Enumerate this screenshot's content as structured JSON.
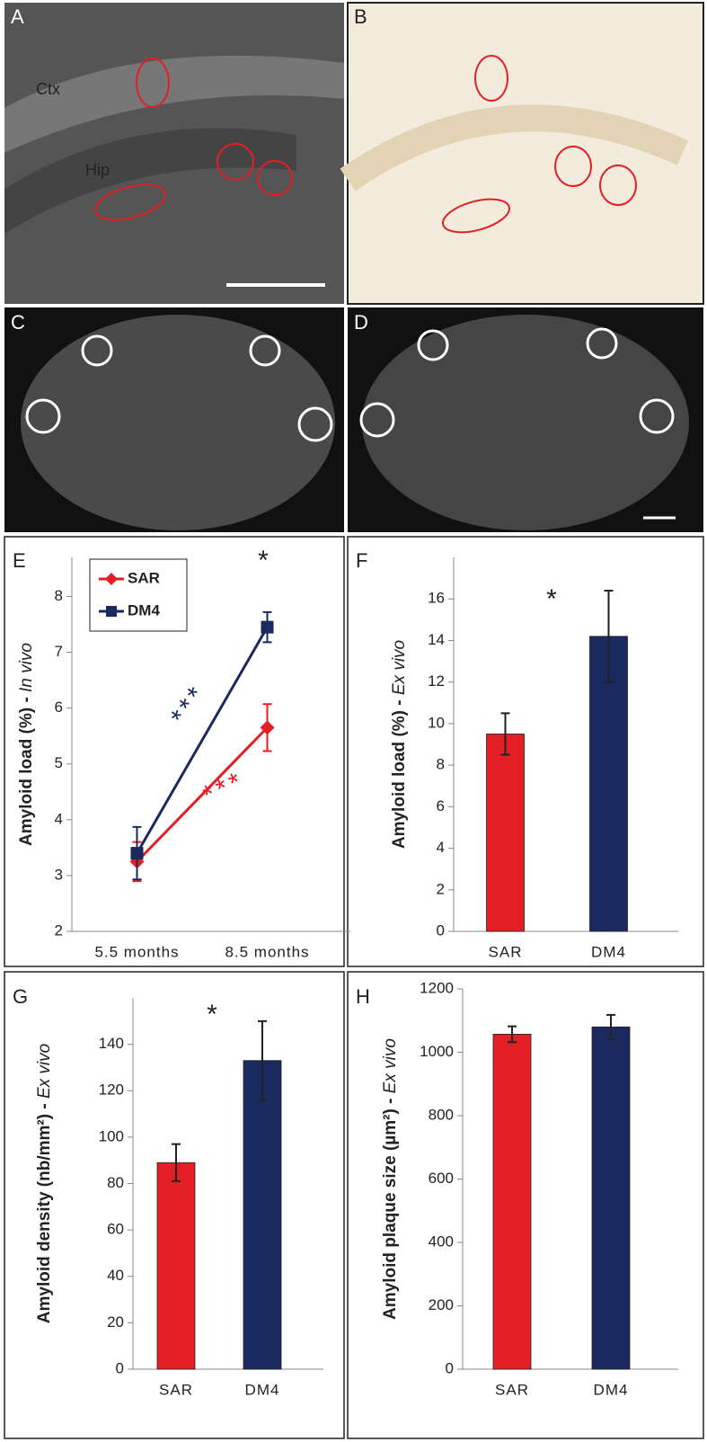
{
  "panels": [
    {
      "label": "A",
      "texts": [
        "Ctx",
        "Hip"
      ]
    },
    {
      "label": "B",
      "texts": []
    },
    {
      "label": "C",
      "texts": []
    },
    {
      "label": "D",
      "texts": []
    }
  ],
  "chart_data": [
    {
      "type": "line",
      "panel": "E",
      "ylabel": [
        "Amyloid load (%) - ",
        "In vivo"
      ],
      "categories": [
        "5.5 months",
        "8.5 months"
      ],
      "series": [
        {
          "name": "SAR",
          "color": "#e31e24",
          "marker": "diamond",
          "values": [
            3.25,
            5.65
          ],
          "errors": [
            0.35,
            0.42
          ]
        },
        {
          "name": "DM4",
          "color": "#1b2a5e",
          "marker": "square",
          "values": [
            3.4,
            7.45
          ],
          "errors": [
            0.47,
            0.27
          ]
        }
      ],
      "ylim": [
        2,
        8.7
      ],
      "yticks": [
        2,
        3,
        4,
        5,
        6,
        7,
        8
      ],
      "legend": "upper left",
      "annotations": [
        {
          "text": "*",
          "color": "#222"
        },
        {
          "text": "***",
          "color": "#1b2a5e"
        },
        {
          "text": "***",
          "color": "#e31e24"
        }
      ]
    },
    {
      "type": "bar",
      "panel": "F",
      "ylabel": [
        "Amyloid load (%) - ",
        "Ex vivo"
      ],
      "categories": [
        "SAR",
        "DM4"
      ],
      "values": [
        9.5,
        14.2
      ],
      "errors": [
        1.0,
        2.2
      ],
      "colors": [
        "#e31e24",
        "#1b2a5e"
      ],
      "ylim": [
        0,
        18
      ],
      "yticks": [
        0,
        2,
        4,
        6,
        8,
        10,
        12,
        14,
        16
      ],
      "annotations": [
        {
          "text": "*",
          "color": "#222"
        }
      ]
    },
    {
      "type": "bar",
      "panel": "G",
      "ylabel": [
        "Amyloid density (nb/mm²) - ",
        "Ex vivo"
      ],
      "categories": [
        "SAR",
        "DM4"
      ],
      "values": [
        89,
        133
      ],
      "errors": [
        8,
        17
      ],
      "colors": [
        "#e31e24",
        "#1b2a5e"
      ],
      "ylim": [
        0,
        160
      ],
      "yticks": [
        0,
        20,
        40,
        60,
        80,
        100,
        120,
        140
      ],
      "annotations": [
        {
          "text": "*",
          "color": "#222"
        }
      ]
    },
    {
      "type": "bar",
      "panel": "H",
      "ylabel": [
        "Amyloid plaque size (µm²) - ",
        "Ex vivo"
      ],
      "categories": [
        "SAR",
        "DM4"
      ],
      "values": [
        1057,
        1080
      ],
      "errors": [
        25,
        38
      ],
      "colors": [
        "#e31e24",
        "#1b2a5e"
      ],
      "ylim": [
        0,
        1200
      ],
      "yticks": [
        0,
        200,
        400,
        600,
        800,
        1000,
        1200
      ],
      "annotations": []
    }
  ]
}
